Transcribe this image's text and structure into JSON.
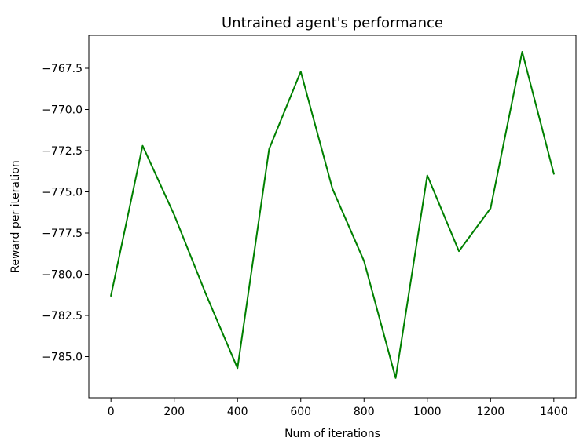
{
  "chart_data": {
    "type": "line",
    "title": "Untrained agent's performance",
    "xlabel": "Num of iterations",
    "ylabel": "Reward per iteration",
    "xlim": [
      -70,
      1470
    ],
    "ylim": [
      -787.5,
      -765.5
    ],
    "xticks": [
      0,
      200,
      400,
      600,
      800,
      1000,
      1200,
      1400
    ],
    "xtick_labels": [
      "0",
      "200",
      "400",
      "600",
      "800",
      "1000",
      "1200",
      "1400"
    ],
    "yticks": [
      -785.0,
      -782.5,
      -780.0,
      -777.5,
      -775.0,
      -772.5,
      -770.0,
      -767.5
    ],
    "ytick_labels": [
      "−785.0",
      "−782.5",
      "−780.0",
      "−777.5",
      "−775.0",
      "−772.5",
      "−770.0",
      "−767.5"
    ],
    "grid": false,
    "series": [
      {
        "color": "#008000",
        "x": [
          0,
          100,
          200,
          300,
          400,
          500,
          600,
          700,
          800,
          900,
          1000,
          1100,
          1200,
          1300,
          1400
        ],
        "y": [
          -781.3,
          -772.2,
          -776.4,
          -781.2,
          -785.7,
          -772.4,
          -767.7,
          -774.8,
          -779.2,
          -786.3,
          -774.0,
          -778.6,
          -776.0,
          -766.5,
          -773.9
        ]
      }
    ]
  }
}
